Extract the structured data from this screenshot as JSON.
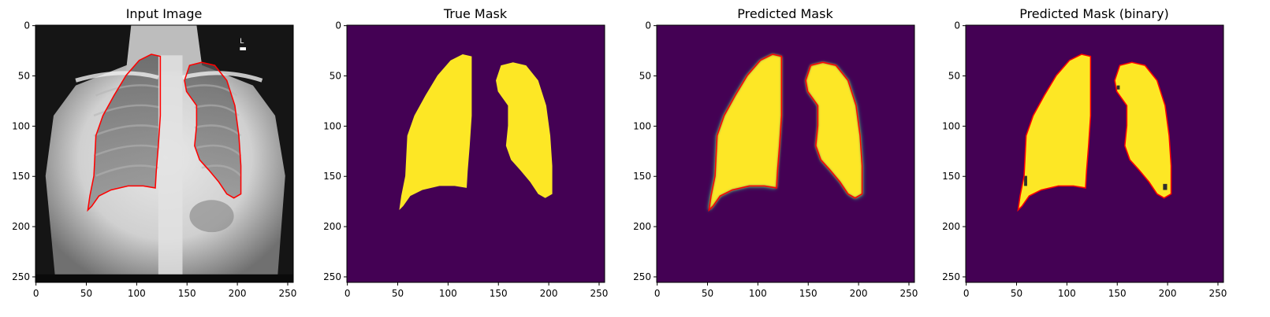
{
  "figure": {
    "colors": {
      "mask_background": "#440154",
      "mask_foreground": "#fde725",
      "contour": "#ff0000",
      "xray_dark": "#111111",
      "xray_light": "#e6e6e6"
    },
    "panels": [
      {
        "title": "Input Image",
        "kind": "xray",
        "x_ticks": [
          "0",
          "50",
          "100",
          "150",
          "200",
          "250"
        ],
        "y_ticks": [
          "0",
          "50",
          "100",
          "150",
          "200",
          "250"
        ],
        "overlay_text": [
          "L"
        ]
      },
      {
        "title": "True Mask",
        "kind": "mask",
        "x_ticks": [
          "0",
          "50",
          "100",
          "150",
          "200",
          "250"
        ],
        "y_ticks": [
          "0",
          "50",
          "100",
          "150",
          "200",
          "250"
        ]
      },
      {
        "title": "Predicted Mask",
        "kind": "mask-soft",
        "x_ticks": [
          "0",
          "50",
          "100",
          "150",
          "200",
          "250"
        ],
        "y_ticks": [
          "0",
          "50",
          "100",
          "150",
          "200",
          "250"
        ]
      },
      {
        "title": "Predicted Mask (binary)",
        "kind": "mask-binary",
        "x_ticks": [
          "0",
          "50",
          "100",
          "150",
          "200",
          "250"
        ],
        "y_ticks": [
          "0",
          "50",
          "100",
          "150",
          "200",
          "250"
        ]
      }
    ]
  }
}
